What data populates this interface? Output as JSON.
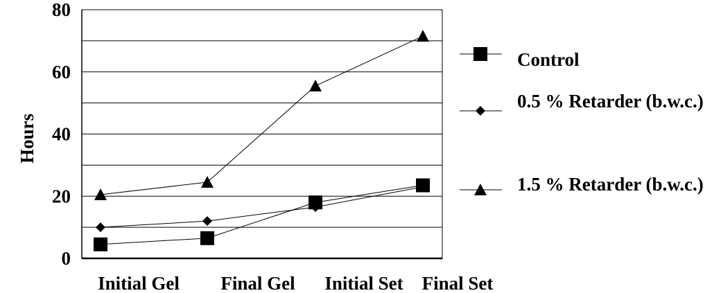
{
  "chart_data": {
    "type": "line",
    "title": "",
    "xlabel": "",
    "ylabel": "Hours",
    "ylim": [
      0,
      80
    ],
    "yticks": [
      0,
      20,
      40,
      60,
      80
    ],
    "grid": true,
    "legend_position": "right",
    "categories": [
      "Initial Gel",
      "Final Gel",
      "Initial Set",
      "Final Set"
    ],
    "series": [
      {
        "name": "Control",
        "marker": "square",
        "values": [
          4.5,
          6.5,
          18,
          23.5
        ]
      },
      {
        "name": "0.5 % Retarder (b.w.c.)",
        "marker": "diamond",
        "values": [
          10,
          12,
          16.5,
          23
        ]
      },
      {
        "name": "1.5 % Retarder (b.w.c.)",
        "marker": "triangle",
        "values": [
          20.5,
          24.5,
          55.5,
          71.5
        ]
      }
    ]
  }
}
